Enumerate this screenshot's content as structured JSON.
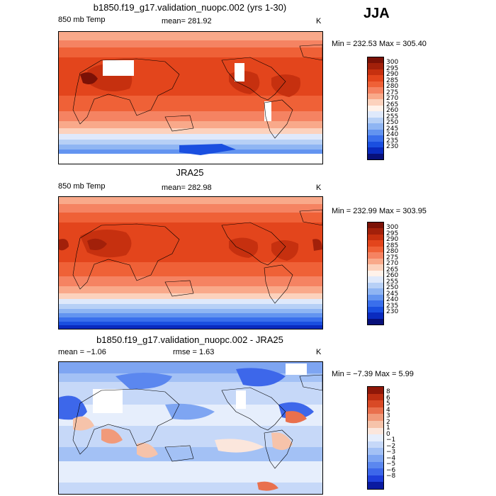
{
  "season": "JJA",
  "colors": {
    "temp_scale": [
      "#08107a",
      "#0a2bbf",
      "#1a4fe0",
      "#3a6fec",
      "#6394f0",
      "#8fb5f3",
      "#b7d0f6",
      "#dfe9fb",
      "#fff2ea",
      "#fcd2bd",
      "#f9a98a",
      "#f58362",
      "#ef6137",
      "#e3451c",
      "#c6300f",
      "#a2200a",
      "#7b1106"
    ],
    "diff_scale": [
      "#0a1aa0",
      "#1f3fdb",
      "#3d67ea",
      "#5b87ef",
      "#7ea5f2",
      "#a3c1f5",
      "#c6d8f8",
      "#e6eefc",
      "#fbe6dc",
      "#f6c3aa",
      "#f19a7a",
      "#e9704d",
      "#d94a26",
      "#bd2e12",
      "#8f1708"
    ]
  },
  "panels": [
    {
      "id": "model",
      "title": "b1850.f19_g17.validation_nuopc.002 (yrs 1-30)",
      "left_label": "850 mb Temp",
      "center_label": "mean= 281.92",
      "units": "K",
      "range_label": "Min = 232.53 Max = 305.40",
      "cbar_labels": [
        "300",
        "295",
        "290",
        "285",
        "280",
        "275",
        "270",
        "265",
        "260",
        "255",
        "250",
        "245",
        "240",
        "235",
        "230"
      ]
    },
    {
      "id": "obs",
      "title": "JRA25",
      "left_label": "850 mb Temp",
      "center_label": "mean= 282.98",
      "units": "K",
      "range_label": "Min = 232.99 Max = 303.95",
      "cbar_labels": [
        "300",
        "295",
        "290",
        "285",
        "280",
        "275",
        "270",
        "265",
        "260",
        "255",
        "250",
        "245",
        "240",
        "235",
        "230"
      ]
    },
    {
      "id": "diff",
      "title": "b1850.f19_g17.validation_nuopc.002 - JRA25",
      "left_label": "mean =  −1.06",
      "center_label": "rmse =   1.63",
      "units": "K",
      "range_label": "Min =  −7.39 Max =   5.99",
      "cbar_labels": [
        "8",
        "6",
        "5",
        "4",
        "3",
        "2",
        "1",
        "0",
        "−1",
        "−2",
        "−3",
        "−4",
        "−5",
        "−6",
        "−8"
      ]
    }
  ]
}
